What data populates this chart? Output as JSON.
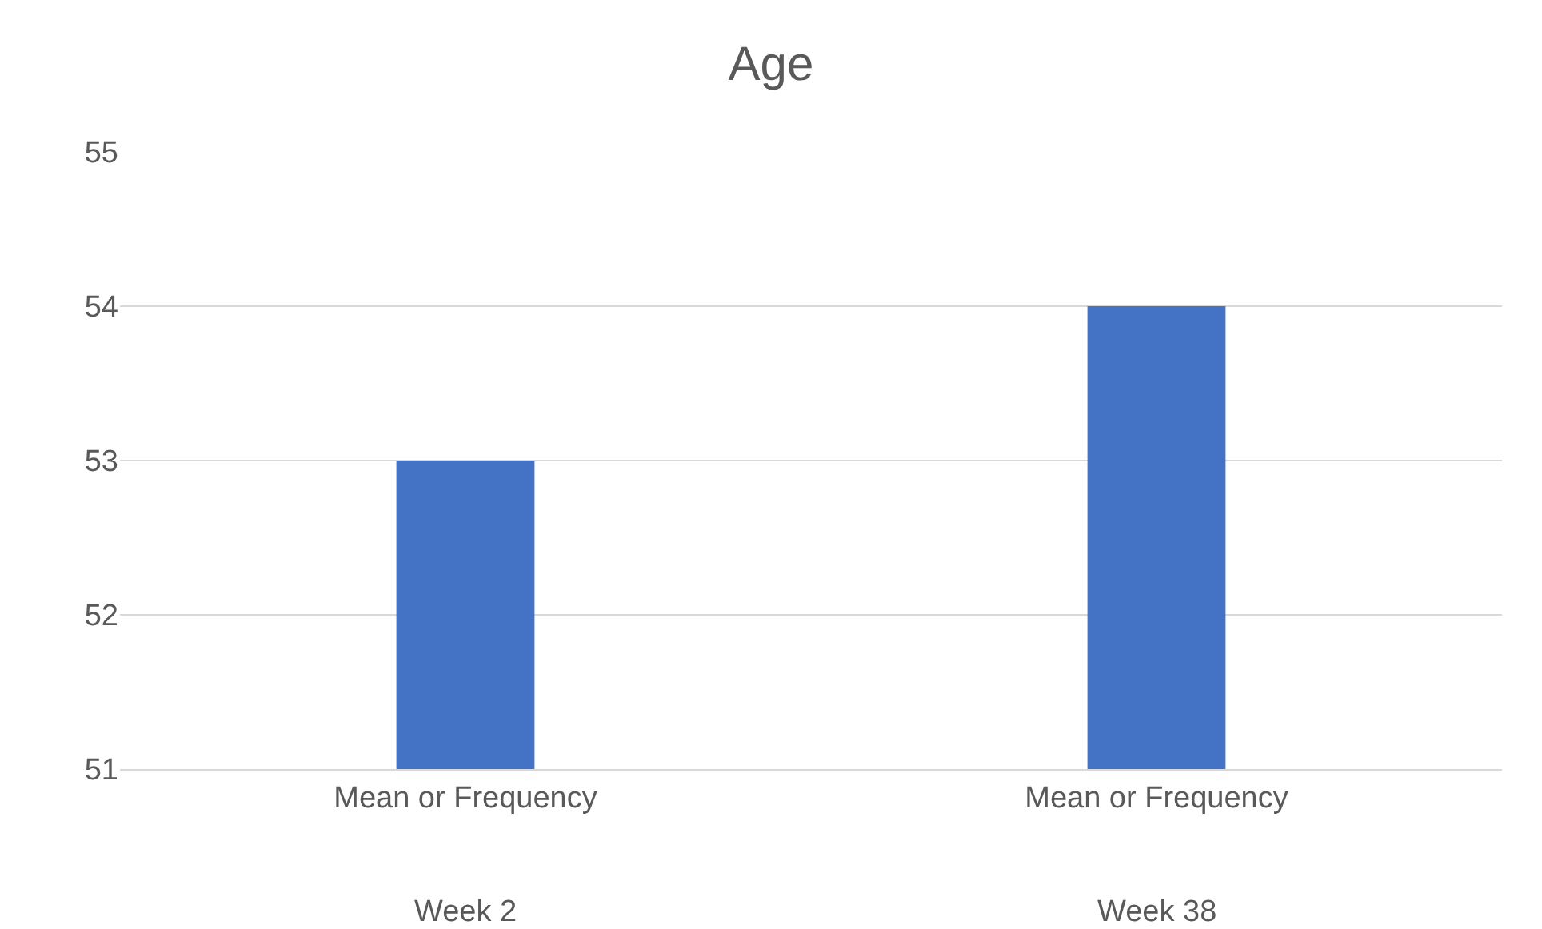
{
  "chart_data": {
    "type": "bar",
    "title": "Age",
    "categories": [
      "Mean or Frequency",
      "Mean or Frequency"
    ],
    "values": [
      53,
      54
    ],
    "color": "#4472c4",
    "ylim": [
      51,
      55
    ],
    "yticks": [
      51,
      52,
      53,
      54,
      55
    ],
    "grid": true,
    "annotations": [
      "Week 2",
      "Week 38"
    ]
  }
}
